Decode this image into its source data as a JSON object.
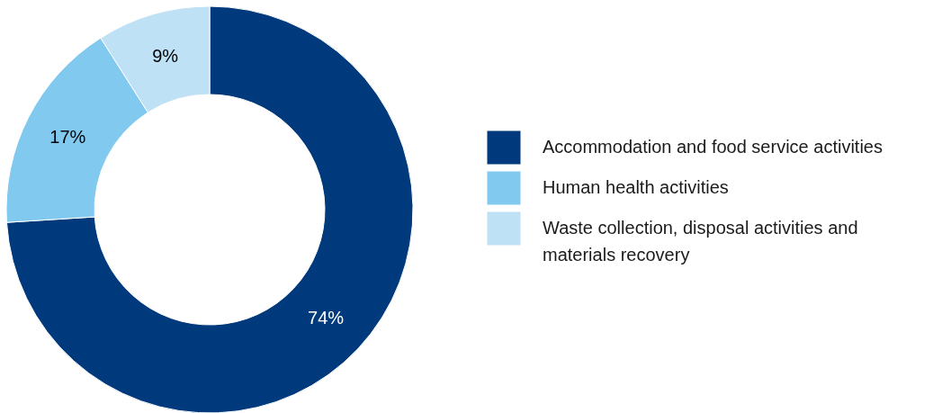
{
  "chart_data": {
    "type": "donut",
    "categories": [
      "Accommodation and food service activities",
      "Human health activities",
      "Waste collection, disposal activities and materials recovery"
    ],
    "values": [
      74,
      17,
      9
    ],
    "value_labels": [
      "74%",
      "17%",
      "9%"
    ],
    "colors": [
      "#003a7d",
      "#82c9f0",
      "#bfe1f6"
    ],
    "legend": "right"
  }
}
